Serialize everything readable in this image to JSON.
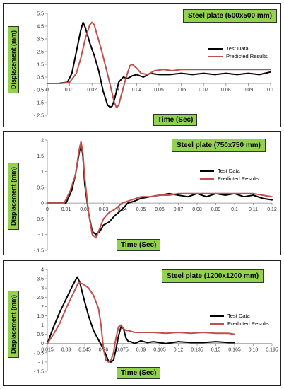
{
  "charts": [
    {
      "title": "Steel plate (500x500 mm)",
      "xlabel": "Time  (Sec)",
      "ylabel": "Displacement    (mm)",
      "legend": [
        "Test Data",
        "Predicted Results"
      ]
    },
    {
      "title": "Steel plate (750x750 mm)",
      "xlabel": "Time  (Sec)",
      "ylabel": "Displacement    (mm)",
      "legend": [
        "Test Data",
        "Predicted Results"
      ]
    },
    {
      "title": "Steel plate (1200x1200 mm)",
      "xlabel": "Time  (Sec)",
      "ylabel": "Displacement    (mm)",
      "legend": [
        "Test Data",
        "Predicted Results"
      ]
    }
  ],
  "chart_data": [
    {
      "type": "line",
      "title": "Steel plate (500x500 mm)",
      "xlabel": "Time  (Sec)",
      "ylabel": "Displacement    (mm)",
      "xlim": [
        0,
        0.1
      ],
      "ylim": [
        -2.5,
        5.5
      ],
      "xticks": [
        0,
        0.01,
        0.02,
        0.03,
        0.04,
        0.05,
        0.06,
        0.07,
        0.08,
        0.09,
        0.1
      ],
      "xtick_labels": [
        "0",
        "0.01",
        "0.02",
        "0.03",
        "0.04",
        "0.05",
        "0.06",
        "0.07",
        "0.08",
        "0.09",
        "0.1"
      ],
      "yticks": [
        -2.5,
        -1.5,
        -0.5,
        0.5,
        1.5,
        2.5,
        3.5,
        4.5,
        5.5
      ],
      "ytick_labels": [
        "- 2.5",
        "- 1.5",
        "- 0.5",
        "0.5",
        "1.5",
        "2.5",
        "3.5",
        "4.5",
        "5.5"
      ],
      "series": [
        {
          "name": "Test Data",
          "color": "#000000",
          "x": [
            0,
            0.005,
            0.009,
            0.011,
            0.013,
            0.015,
            0.016,
            0.017,
            0.018,
            0.019,
            0.021,
            0.023,
            0.025,
            0.027,
            0.028,
            0.029,
            0.03,
            0.032,
            0.034,
            0.036,
            0.038,
            0.04,
            0.043,
            0.046,
            0.05,
            0.055,
            0.06,
            0.065,
            0.07,
            0.075,
            0.08,
            0.085,
            0.09,
            0.095,
            0.1
          ],
          "y": [
            0,
            0,
            0.1,
            0.8,
            2.5,
            4.2,
            4.8,
            4.4,
            3.8,
            3.2,
            2.2,
            1.0,
            -0.6,
            -1.7,
            -1.85,
            -1.8,
            -1.3,
            0.1,
            0.5,
            0.4,
            0.6,
            0.7,
            0.5,
            0.8,
            0.7,
            0.7,
            0.8,
            0.7,
            0.8,
            0.7,
            0.8,
            0.7,
            0.8,
            0.7,
            0.9
          ]
        },
        {
          "name": "Predicted Results",
          "color": "#c0504d",
          "x": [
            0,
            0.006,
            0.01,
            0.013,
            0.015,
            0.017,
            0.019,
            0.02,
            0.021,
            0.022,
            0.024,
            0.026,
            0.028,
            0.03,
            0.031,
            0.032,
            0.033,
            0.035,
            0.037,
            0.038,
            0.04,
            0.042,
            0.045,
            0.048,
            0.052,
            0.056,
            0.06,
            0.07,
            0.08,
            0.09,
            0.1
          ],
          "y": [
            0,
            0,
            0.1,
            0.8,
            2.0,
            3.5,
            4.6,
            4.8,
            4.6,
            4.0,
            2.8,
            1.4,
            0.0,
            -1.5,
            -1.9,
            -1.7,
            -1.0,
            0.3,
            1.4,
            1.5,
            1.2,
            0.8,
            0.7,
            1.0,
            1.1,
            1.0,
            1.1,
            1.1,
            1.1,
            1.1,
            1.1
          ]
        }
      ]
    },
    {
      "type": "line",
      "title": "Steel plate (750x750 mm)",
      "xlabel": "Time  (Sec)",
      "ylabel": "Displacement    (mm)",
      "xlim": [
        0,
        0.12
      ],
      "ylim": [
        -1.5,
        2
      ],
      "xticks": [
        0,
        0.01,
        0.02,
        0.03,
        0.04,
        0.05,
        0.06,
        0.07,
        0.08,
        0.09,
        0.1,
        0.11,
        0.12
      ],
      "xtick_labels": [
        "0",
        "0.01",
        "0.02",
        "0.03",
        "0.04",
        "0.05",
        "0.06",
        "0.07",
        "0.08",
        "0.09",
        "0.1",
        "0.11",
        "0.12"
      ],
      "yticks": [
        -1.5,
        -1,
        -0.5,
        0,
        0.5,
        1,
        1.5,
        2
      ],
      "ytick_labels": [
        "- 1.5",
        "- 1",
        "- 0.5",
        "0",
        "0.5",
        "1",
        "1.5",
        "2"
      ],
      "series": [
        {
          "name": "Test Data",
          "color": "#000000",
          "x": [
            0,
            0.01,
            0.013,
            0.015,
            0.017,
            0.018,
            0.019,
            0.02,
            0.022,
            0.024,
            0.026,
            0.028,
            0.03,
            0.033,
            0.036,
            0.04,
            0.043,
            0.046,
            0.05,
            0.055,
            0.06,
            0.065,
            0.07,
            0.075,
            0.08,
            0.085,
            0.09,
            0.095,
            0.1,
            0.105,
            0.11,
            0.115,
            0.12
          ],
          "y": [
            0,
            0,
            0.4,
            0.9,
            1.6,
            1.9,
            1.5,
            0.6,
            -0.3,
            -0.9,
            -1.0,
            -0.9,
            -0.7,
            -0.6,
            -0.4,
            -0.2,
            0.0,
            0.05,
            0.15,
            0.2,
            0.25,
            0.3,
            0.25,
            0.2,
            0.3,
            0.2,
            0.3,
            0.25,
            0.3,
            0.2,
            0.25,
            0.15,
            0.1
          ]
        },
        {
          "name": "Predicted Results",
          "color": "#c0504d",
          "x": [
            0,
            0.009,
            0.012,
            0.015,
            0.017,
            0.018,
            0.019,
            0.02,
            0.022,
            0.024,
            0.026,
            0.028,
            0.03,
            0.033,
            0.036,
            0.04,
            0.045,
            0.05,
            0.055,
            0.06,
            0.065,
            0.07,
            0.08,
            0.09,
            0.1,
            0.11,
            0.12
          ],
          "y": [
            0,
            0,
            0.35,
            0.9,
            1.7,
            1.95,
            1.6,
            0.8,
            -0.3,
            -1.0,
            -1.1,
            -0.8,
            -0.5,
            -0.3,
            -0.2,
            0.0,
            0.1,
            0.2,
            0.2,
            0.25,
            0.25,
            0.3,
            0.3,
            0.3,
            0.3,
            0.3,
            0.2
          ]
        }
      ]
    },
    {
      "type": "line",
      "title": "Steel plate (1200x1200 mm)",
      "xlabel": "Time  (Sec)",
      "ylabel": "Displacement    (mm)",
      "xlim": [
        0.015,
        0.195
      ],
      "ylim": [
        -1.5,
        4
      ],
      "xticks": [
        0.015,
        0.03,
        0.045,
        0.06,
        0.075,
        0.09,
        0.105,
        0.12,
        0.135,
        0.15,
        0.165,
        0.18,
        0.195
      ],
      "xtick_labels": [
        "0.015",
        "0.03",
        "0.045",
        "0.06",
        "0.075",
        "0.09",
        "0.105",
        "0.12",
        "0.135",
        "0.15",
        "0.165",
        "0.18",
        "0.195"
      ],
      "yticks": [
        -1.5,
        -1,
        -0.5,
        0,
        0.5,
        1,
        1.5,
        2,
        2.5,
        3,
        3.5,
        4
      ],
      "ytick_labels": [
        "- 1.5",
        "- 1",
        "- 0.5",
        "0",
        "0.5",
        "1",
        "1.5",
        "2",
        "2.5",
        "3",
        "3.5",
        "4"
      ],
      "series": [
        {
          "name": "Test Data",
          "color": "#000000",
          "x": [
            0.015,
            0.02,
            0.025,
            0.03,
            0.035,
            0.039,
            0.041,
            0.044,
            0.048,
            0.052,
            0.056,
            0.06,
            0.064,
            0.066,
            0.068,
            0.07,
            0.072,
            0.074,
            0.076,
            0.078,
            0.08,
            0.082,
            0.085,
            0.09,
            0.095,
            0.1,
            0.11,
            0.12,
            0.13,
            0.14,
            0.15,
            0.16,
            0.165
          ],
          "y": [
            0,
            0.9,
            1.7,
            2.4,
            3.1,
            3.6,
            3.3,
            2.5,
            1.5,
            0.7,
            0.2,
            -0.3,
            -0.95,
            -1.0,
            -0.9,
            -0.3,
            0.4,
            0.9,
            0.8,
            0.3,
            0.1,
            0.1,
            0.0,
            0.15,
            0.05,
            0.1,
            0.0,
            0.1,
            0.05,
            0.05,
            0.1,
            0.05,
            0.05
          ]
        },
        {
          "name": "Predicted Results",
          "color": "#c0504d",
          "x": [
            0.015,
            0.02,
            0.025,
            0.03,
            0.035,
            0.04,
            0.044,
            0.048,
            0.052,
            0.056,
            0.058,
            0.06,
            0.062,
            0.064,
            0.066,
            0.068,
            0.07,
            0.072,
            0.074,
            0.076,
            0.078,
            0.08,
            0.085,
            0.09,
            0.1,
            0.11,
            0.12,
            0.13,
            0.14,
            0.15,
            0.16,
            0.165
          ],
          "y": [
            0,
            0.5,
            1.1,
            1.9,
            2.6,
            3.3,
            3.2,
            3.0,
            2.6,
            1.9,
            1.0,
            -0.3,
            -0.9,
            -1.0,
            -0.9,
            -0.5,
            0.3,
            0.9,
            1.0,
            0.8,
            0.7,
            0.7,
            0.6,
            0.6,
            0.6,
            0.55,
            0.6,
            0.55,
            0.6,
            0.55,
            0.55,
            0.5
          ]
        }
      ]
    }
  ]
}
